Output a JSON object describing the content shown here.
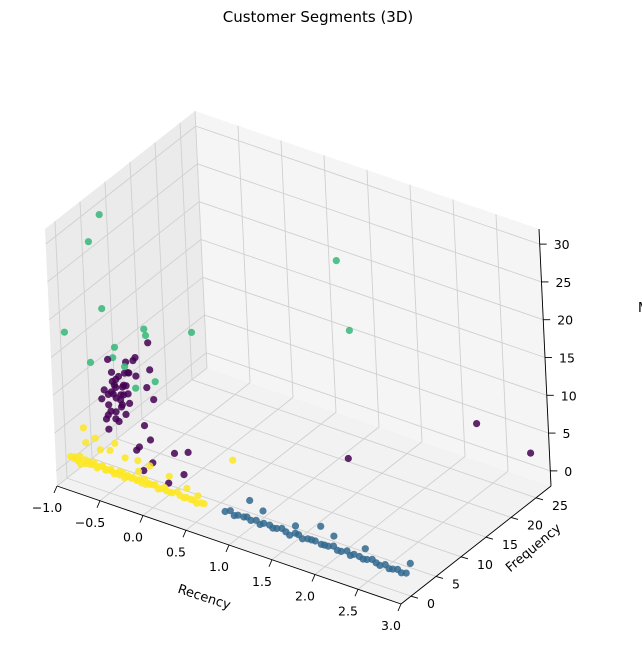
{
  "chart_data": {
    "type": "scatter",
    "projection": "3d",
    "title": "Customer Segments (3D)",
    "xlabel": "Recency",
    "ylabel": "Frequency",
    "zlabel": "M",
    "xlim": [
      -1.0,
      3.0
    ],
    "ylim": [
      -2,
      28
    ],
    "zlim": [
      -2,
      32
    ],
    "x_ticks": [
      "−1.0",
      "−0.5",
      "0.0",
      "0.5",
      "1.0",
      "1.5",
      "2.0",
      "2.5",
      "3.0"
    ],
    "y_ticks": [
      "0",
      "5",
      "10",
      "15",
      "20",
      "25"
    ],
    "z_ticks": [
      "0",
      "5",
      "10",
      "15",
      "20",
      "25",
      "30"
    ],
    "grid": true,
    "colormap": "viridis",
    "series": [
      {
        "color": "#fde725",
        "points": [
          [
            -0.95,
            0.1,
            1.0
          ],
          [
            -0.92,
            0.2,
            0.8
          ],
          [
            -0.9,
            0.0,
            1.2
          ],
          [
            -0.88,
            0.3,
            0.6
          ],
          [
            -0.86,
            0.1,
            0.9
          ],
          [
            -0.85,
            0.2,
            1.4
          ],
          [
            -0.83,
            0.0,
            0.5
          ],
          [
            -0.8,
            0.4,
            1.0
          ],
          [
            -0.78,
            0.1,
            0.7
          ],
          [
            -0.75,
            0.2,
            1.1
          ],
          [
            -0.72,
            0.0,
            0.9
          ],
          [
            -0.7,
            0.3,
            0.8
          ],
          [
            -0.68,
            0.1,
            1.3
          ],
          [
            -0.65,
            0.2,
            0.6
          ],
          [
            -0.62,
            0.0,
            1.0
          ],
          [
            -0.6,
            0.4,
            0.9
          ],
          [
            -0.58,
            0.1,
            1.2
          ],
          [
            -0.55,
            0.2,
            0.7
          ],
          [
            -0.52,
            0.0,
            1.0
          ],
          [
            -0.5,
            0.3,
            0.8
          ],
          [
            -0.48,
            0.1,
            1.1
          ],
          [
            -0.45,
            0.2,
            0.6
          ],
          [
            -0.42,
            0.0,
            0.9
          ],
          [
            -0.4,
            0.4,
            1.0
          ],
          [
            -0.38,
            0.1,
            0.8
          ],
          [
            -0.35,
            0.2,
            1.2
          ],
          [
            -0.32,
            0.0,
            0.7
          ],
          [
            -0.3,
            0.3,
            0.9
          ],
          [
            -0.28,
            0.1,
            1.0
          ],
          [
            -0.25,
            0.2,
            0.8
          ],
          [
            -0.22,
            0.0,
            1.1
          ],
          [
            -0.2,
            0.4,
            0.6
          ],
          [
            -0.18,
            0.1,
            0.9
          ],
          [
            -0.15,
            0.2,
            1.0
          ],
          [
            -0.12,
            0.0,
            0.8
          ],
          [
            -0.1,
            0.3,
            1.2
          ],
          [
            -0.08,
            0.1,
            0.7
          ],
          [
            -0.05,
            0.2,
            0.9
          ],
          [
            -0.02,
            0.0,
            1.0
          ],
          [
            0.0,
            0.4,
            0.8
          ],
          [
            0.03,
            0.1,
            1.1
          ],
          [
            0.06,
            0.2,
            0.6
          ],
          [
            0.1,
            0.0,
            0.9
          ],
          [
            0.13,
            0.3,
            1.0
          ],
          [
            0.16,
            0.1,
            0.8
          ],
          [
            0.2,
            0.2,
            0.7
          ],
          [
            0.24,
            0.0,
            0.9
          ],
          [
            0.28,
            0.3,
            1.0
          ],
          [
            0.32,
            0.1,
            0.8
          ],
          [
            0.36,
            0.2,
            0.6
          ],
          [
            0.4,
            0.0,
            0.9
          ],
          [
            0.44,
            0.2,
            0.7
          ],
          [
            0.48,
            0.1,
            0.8
          ],
          [
            0.52,
            0.0,
            0.6
          ],
          [
            0.56,
            0.2,
            0.7
          ],
          [
            0.6,
            0.1,
            0.8
          ],
          [
            -0.85,
            1.5,
            2.5
          ],
          [
            -0.78,
            2.2,
            3.0
          ],
          [
            -0.7,
            1.8,
            2.0
          ],
          [
            -0.55,
            1.2,
            2.8
          ],
          [
            -0.4,
            1.6,
            2.2
          ],
          [
            -0.3,
            2.4,
            1.8
          ],
          [
            -0.1,
            1.4,
            2.4
          ],
          [
            0.1,
            1.8,
            1.6
          ],
          [
            -0.95,
            2.8,
            3.4
          ],
          [
            -0.6,
            3.0,
            2.6
          ],
          [
            0.35,
            1.0,
            1.4
          ],
          [
            0.6,
            6.0,
            3.5
          ],
          [
            -0.2,
            0.8,
            1.6
          ],
          [
            0.5,
            0.6,
            1.2
          ]
        ]
      },
      {
        "color": "#31688e",
        "points": [
          [
            0.85,
            0.0,
            0.8
          ],
          [
            0.9,
            0.2,
            1.0
          ],
          [
            0.95,
            0.1,
            0.6
          ],
          [
            1.0,
            0.0,
            0.9
          ],
          [
            1.05,
            0.3,
            0.7
          ],
          [
            1.1,
            0.1,
            1.0
          ],
          [
            1.15,
            0.0,
            0.8
          ],
          [
            1.2,
            0.2,
            0.9
          ],
          [
            1.25,
            0.1,
            0.6
          ],
          [
            1.3,
            0.0,
            1.0
          ],
          [
            1.35,
            0.3,
            0.8
          ],
          [
            1.4,
            0.1,
            0.7
          ],
          [
            1.45,
            0.0,
            0.9
          ],
          [
            1.5,
            0.2,
            1.0
          ],
          [
            1.55,
            0.1,
            0.8
          ],
          [
            1.6,
            0.0,
            0.6
          ],
          [
            1.65,
            0.3,
            0.9
          ],
          [
            1.7,
            0.1,
            1.0
          ],
          [
            1.75,
            0.0,
            0.7
          ],
          [
            1.8,
            0.2,
            0.8
          ],
          [
            1.85,
            0.1,
            0.9
          ],
          [
            1.9,
            0.0,
            1.0
          ],
          [
            1.95,
            0.3,
            0.6
          ],
          [
            2.0,
            0.1,
            0.8
          ],
          [
            2.05,
            0.0,
            0.9
          ],
          [
            2.1,
            0.2,
            1.0
          ],
          [
            2.15,
            0.1,
            0.7
          ],
          [
            2.2,
            0.0,
            0.8
          ],
          [
            2.25,
            0.3,
            0.9
          ],
          [
            2.3,
            0.1,
            0.6
          ],
          [
            2.35,
            0.0,
            1.0
          ],
          [
            2.4,
            0.2,
            0.8
          ],
          [
            2.45,
            0.1,
            0.7
          ],
          [
            2.5,
            0.0,
            0.9
          ],
          [
            2.55,
            0.2,
            1.0
          ],
          [
            2.6,
            0.1,
            0.8
          ],
          [
            2.65,
            0.0,
            0.7
          ],
          [
            2.7,
            0.2,
            0.9
          ],
          [
            2.75,
            0.1,
            0.6
          ],
          [
            2.8,
            0.0,
            0.8
          ],
          [
            2.85,
            0.1,
            0.9
          ],
          [
            2.9,
            0.0,
            0.7
          ],
          [
            2.95,
            0.1,
            0.8
          ],
          [
            1.2,
            1.6,
            1.4
          ],
          [
            1.6,
            1.2,
            1.2
          ],
          [
            2.0,
            2.0,
            1.0
          ],
          [
            2.4,
            1.4,
            1.2
          ],
          [
            2.9,
            1.8,
            1.0
          ],
          [
            1.0,
            2.4,
            1.6
          ],
          [
            1.8,
            2.8,
            1.1
          ]
        ]
      },
      {
        "color": "#440154",
        "points": [
          [
            -0.62,
            4.0,
            8.0
          ],
          [
            -0.65,
            3.0,
            7.5
          ],
          [
            -0.6,
            5.0,
            9.0
          ],
          [
            -0.68,
            3.5,
            8.5
          ],
          [
            -0.58,
            4.5,
            7.0
          ],
          [
            -0.63,
            2.5,
            6.5
          ],
          [
            -0.55,
            3.8,
            8.8
          ],
          [
            -0.7,
            4.8,
            7.8
          ],
          [
            -0.6,
            2.8,
            9.5
          ],
          [
            -0.66,
            5.5,
            6.8
          ],
          [
            -0.57,
            3.2,
            10.0
          ],
          [
            -0.64,
            4.2,
            6.0
          ],
          [
            -0.61,
            3.6,
            5.5
          ],
          [
            -0.59,
            2.4,
            7.2
          ],
          [
            -0.67,
            4.6,
            9.2
          ],
          [
            -0.55,
            5.2,
            8.2
          ],
          [
            -0.62,
            3.4,
            10.5
          ],
          [
            -0.66,
            2.6,
            5.8
          ],
          [
            -0.58,
            4.0,
            11.0
          ],
          [
            -0.6,
            3.0,
            12.0
          ],
          [
            -0.52,
            4.4,
            9.8
          ],
          [
            -0.64,
            5.8,
            7.4
          ],
          [
            -0.5,
            3.8,
            6.4
          ],
          [
            -0.68,
            2.2,
            8.6
          ],
          [
            -0.7,
            4.0,
            12.8
          ],
          [
            -0.55,
            5.0,
            12.5
          ],
          [
            -0.48,
            4.2,
            11.8
          ],
          [
            -0.6,
            2.0,
            5.0
          ],
          [
            -0.63,
            6.0,
            10.2
          ],
          [
            -0.5,
            3.0,
            7.8
          ],
          [
            -0.45,
            4.8,
            13.2
          ],
          [
            -0.54,
            2.8,
            11.4
          ],
          [
            -0.72,
            3.4,
            9.0
          ],
          [
            -0.66,
            6.2,
            8.4
          ],
          [
            -0.46,
            5.4,
            10.8
          ],
          [
            -0.4,
            4.4,
            14.0
          ],
          [
            -0.3,
            6.0,
            8.0
          ],
          [
            -0.35,
            5.6,
            9.6
          ],
          [
            -0.42,
            3.4,
            12.4
          ],
          [
            -0.38,
            6.8,
            11.2
          ],
          [
            -0.5,
            2.4,
            6.2
          ],
          [
            -0.44,
            3.6,
            8.2
          ],
          [
            -0.3,
            4.0,
            5.6
          ],
          [
            -0.25,
            2.0,
            4.0
          ],
          [
            -0.4,
            7.0,
            14.6
          ],
          [
            -0.32,
            2.6,
            3.0
          ],
          [
            -0.2,
            3.4,
            4.4
          ],
          [
            0.1,
            3.0,
            4.0
          ],
          [
            0.2,
            4.0,
            4.0
          ],
          [
            -0.1,
            2.0,
            2.5
          ],
          [
            0.25,
            2.2,
            2.2
          ],
          [
            1.6,
            12.0,
            4.5
          ],
          [
            2.4,
            24.0,
            6.0
          ],
          [
            2.9,
            26.0,
            3.0
          ],
          [
            -0.15,
            1.0,
            1.8
          ],
          [
            0.15,
            0.8,
            1.4
          ]
        ]
      },
      {
        "color": "#35b779",
        "points": [
          [
            -0.75,
            4.5,
            31.5
          ],
          [
            -0.8,
            3.0,
            28.5
          ],
          [
            -0.65,
            2.5,
            20.5
          ],
          [
            -0.95,
            0.0,
            17.5
          ],
          [
            -0.55,
            3.0,
            15.5
          ],
          [
            -0.75,
            1.5,
            13.5
          ],
          [
            -0.7,
            5.0,
            12.5
          ],
          [
            -0.35,
            1.5,
            14.5
          ],
          [
            -0.3,
            5.0,
            17.0
          ],
          [
            -0.2,
            1.0,
            12.5
          ],
          [
            -0.15,
            4.0,
            12.0
          ],
          [
            1.2,
            18.0,
            26.0
          ],
          [
            1.5,
            15.0,
            19.5
          ],
          [
            0.0,
            9.0,
            16.5
          ],
          [
            -0.5,
            8.0,
            15.5
          ]
        ]
      }
    ]
  }
}
